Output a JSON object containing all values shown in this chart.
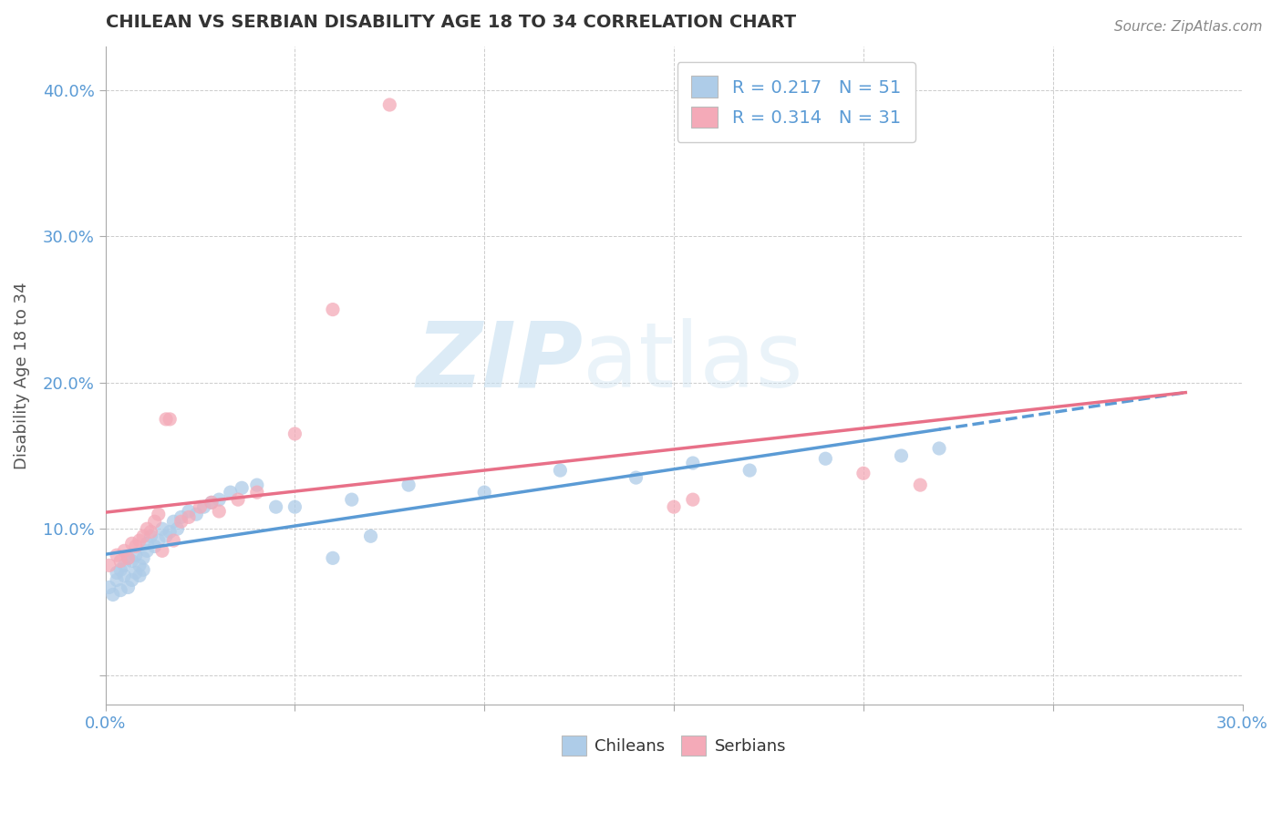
{
  "title": "CHILEAN VS SERBIAN DISABILITY AGE 18 TO 34 CORRELATION CHART",
  "source": "Source: ZipAtlas.com",
  "ylabel_label": "Disability Age 18 to 34",
  "xlim": [
    0.0,
    0.3
  ],
  "ylim": [
    -0.02,
    0.43
  ],
  "xticks": [
    0.0,
    0.05,
    0.1,
    0.15,
    0.2,
    0.25,
    0.3
  ],
  "xticklabels": [
    "0.0%",
    "",
    "",
    "",
    "",
    "",
    "30.0%"
  ],
  "yticks": [
    0.0,
    0.1,
    0.2,
    0.3,
    0.4
  ],
  "yticklabels": [
    "",
    "10.0%",
    "20.0%",
    "30.0%",
    "40.0%"
  ],
  "legend_r1": "R = 0.217",
  "legend_n1": "N = 51",
  "legend_r2": "R = 0.314",
  "legend_n2": "N = 31",
  "color_chilean": "#aecce8",
  "color_serbian": "#f4aab8",
  "color_line_chilean": "#5b9bd5",
  "color_line_serbian": "#e87088",
  "watermark_zip": "ZIP",
  "watermark_atlas": "atlas",
  "chilean_x": [
    0.001,
    0.002,
    0.003,
    0.003,
    0.004,
    0.004,
    0.005,
    0.005,
    0.006,
    0.006,
    0.007,
    0.007,
    0.008,
    0.008,
    0.009,
    0.009,
    0.01,
    0.01,
    0.011,
    0.011,
    0.012,
    0.013,
    0.014,
    0.015,
    0.016,
    0.017,
    0.018,
    0.019,
    0.02,
    0.022,
    0.024,
    0.026,
    0.028,
    0.03,
    0.033,
    0.036,
    0.04,
    0.045,
    0.05,
    0.06,
    0.065,
    0.07,
    0.08,
    0.1,
    0.12,
    0.14,
    0.155,
    0.17,
    0.19,
    0.21,
    0.22
  ],
  "chilean_y": [
    0.06,
    0.055,
    0.065,
    0.07,
    0.058,
    0.072,
    0.068,
    0.075,
    0.06,
    0.08,
    0.065,
    0.078,
    0.07,
    0.082,
    0.075,
    0.068,
    0.08,
    0.072,
    0.085,
    0.09,
    0.095,
    0.088,
    0.092,
    0.1,
    0.095,
    0.098,
    0.105,
    0.1,
    0.108,
    0.112,
    0.11,
    0.115,
    0.118,
    0.12,
    0.125,
    0.128,
    0.13,
    0.115,
    0.115,
    0.08,
    0.12,
    0.095,
    0.13,
    0.125,
    0.14,
    0.135,
    0.145,
    0.14,
    0.148,
    0.15,
    0.155
  ],
  "serbian_x": [
    0.001,
    0.003,
    0.004,
    0.005,
    0.006,
    0.007,
    0.008,
    0.009,
    0.01,
    0.011,
    0.012,
    0.013,
    0.014,
    0.015,
    0.016,
    0.017,
    0.018,
    0.02,
    0.022,
    0.025,
    0.028,
    0.03,
    0.035,
    0.04,
    0.05,
    0.06,
    0.075,
    0.15,
    0.155,
    0.2,
    0.215
  ],
  "serbian_y": [
    0.075,
    0.082,
    0.078,
    0.085,
    0.08,
    0.09,
    0.088,
    0.092,
    0.095,
    0.1,
    0.098,
    0.105,
    0.11,
    0.085,
    0.175,
    0.175,
    0.092,
    0.105,
    0.108,
    0.115,
    0.118,
    0.112,
    0.12,
    0.125,
    0.165,
    0.25,
    0.39,
    0.115,
    0.12,
    0.138,
    0.13
  ]
}
